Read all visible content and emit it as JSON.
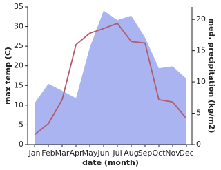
{
  "chart_data": {
    "type": "line-area",
    "categories": [
      "Jan",
      "Feb",
      "Mar",
      "Apr",
      "May",
      "Jun",
      "Jul",
      "Aug",
      "Sep",
      "Oct",
      "Nov",
      "Dec"
    ],
    "x_label": "date (month)",
    "y_label": "max temp (C)",
    "y2_label": "med. precipitation (kg/m2)",
    "ylim": [
      0,
      35
    ],
    "yticks": [
      0,
      5,
      10,
      15,
      20,
      25,
      30,
      35
    ],
    "y2lim": [
      0,
      22
    ],
    "y2ticks": [
      0,
      5,
      10,
      15,
      20
    ],
    "series": [
      {
        "name": "max temp",
        "kind": "line",
        "color": "#b35a6e",
        "axis": "y",
        "values": [
          2.5,
          5.3,
          11.4,
          25.4,
          28.3,
          29.5,
          30.8,
          26.2,
          25.8,
          11.4,
          10.8,
          6.6
        ]
      },
      {
        "name": "precipitation",
        "kind": "area",
        "color": "#aab4f0",
        "axis": "y2",
        "values": [
          6.6,
          9.7,
          8.6,
          7.4,
          15.5,
          21.4,
          19.9,
          20.6,
          17.1,
          12.2,
          12.5,
          10.5
        ]
      }
    ]
  }
}
